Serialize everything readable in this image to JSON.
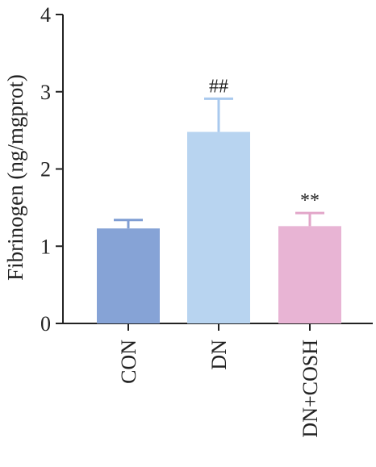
{
  "chart_data": {
    "type": "bar",
    "title": "",
    "xlabel": "",
    "ylabel": "Fibrinogen (ng/mgprot)",
    "ylim": [
      0,
      4
    ],
    "yticks": [
      "0",
      "1",
      "2",
      "3",
      "4"
    ],
    "categories": [
      "CON",
      "DN",
      "DN+COSH"
    ],
    "values": [
      1.23,
      2.48,
      1.26
    ],
    "errors": [
      0.11,
      0.43,
      0.17
    ],
    "annotations": [
      "",
      "##",
      "**"
    ],
    "colors": [
      "#86a3d6",
      "#b8d4f0",
      "#e8b4d4"
    ],
    "errorbar_colors": [
      "#7f9dd3",
      "#a9c9ee",
      "#e2a6c9"
    ],
    "grid": false,
    "legend": "none"
  }
}
